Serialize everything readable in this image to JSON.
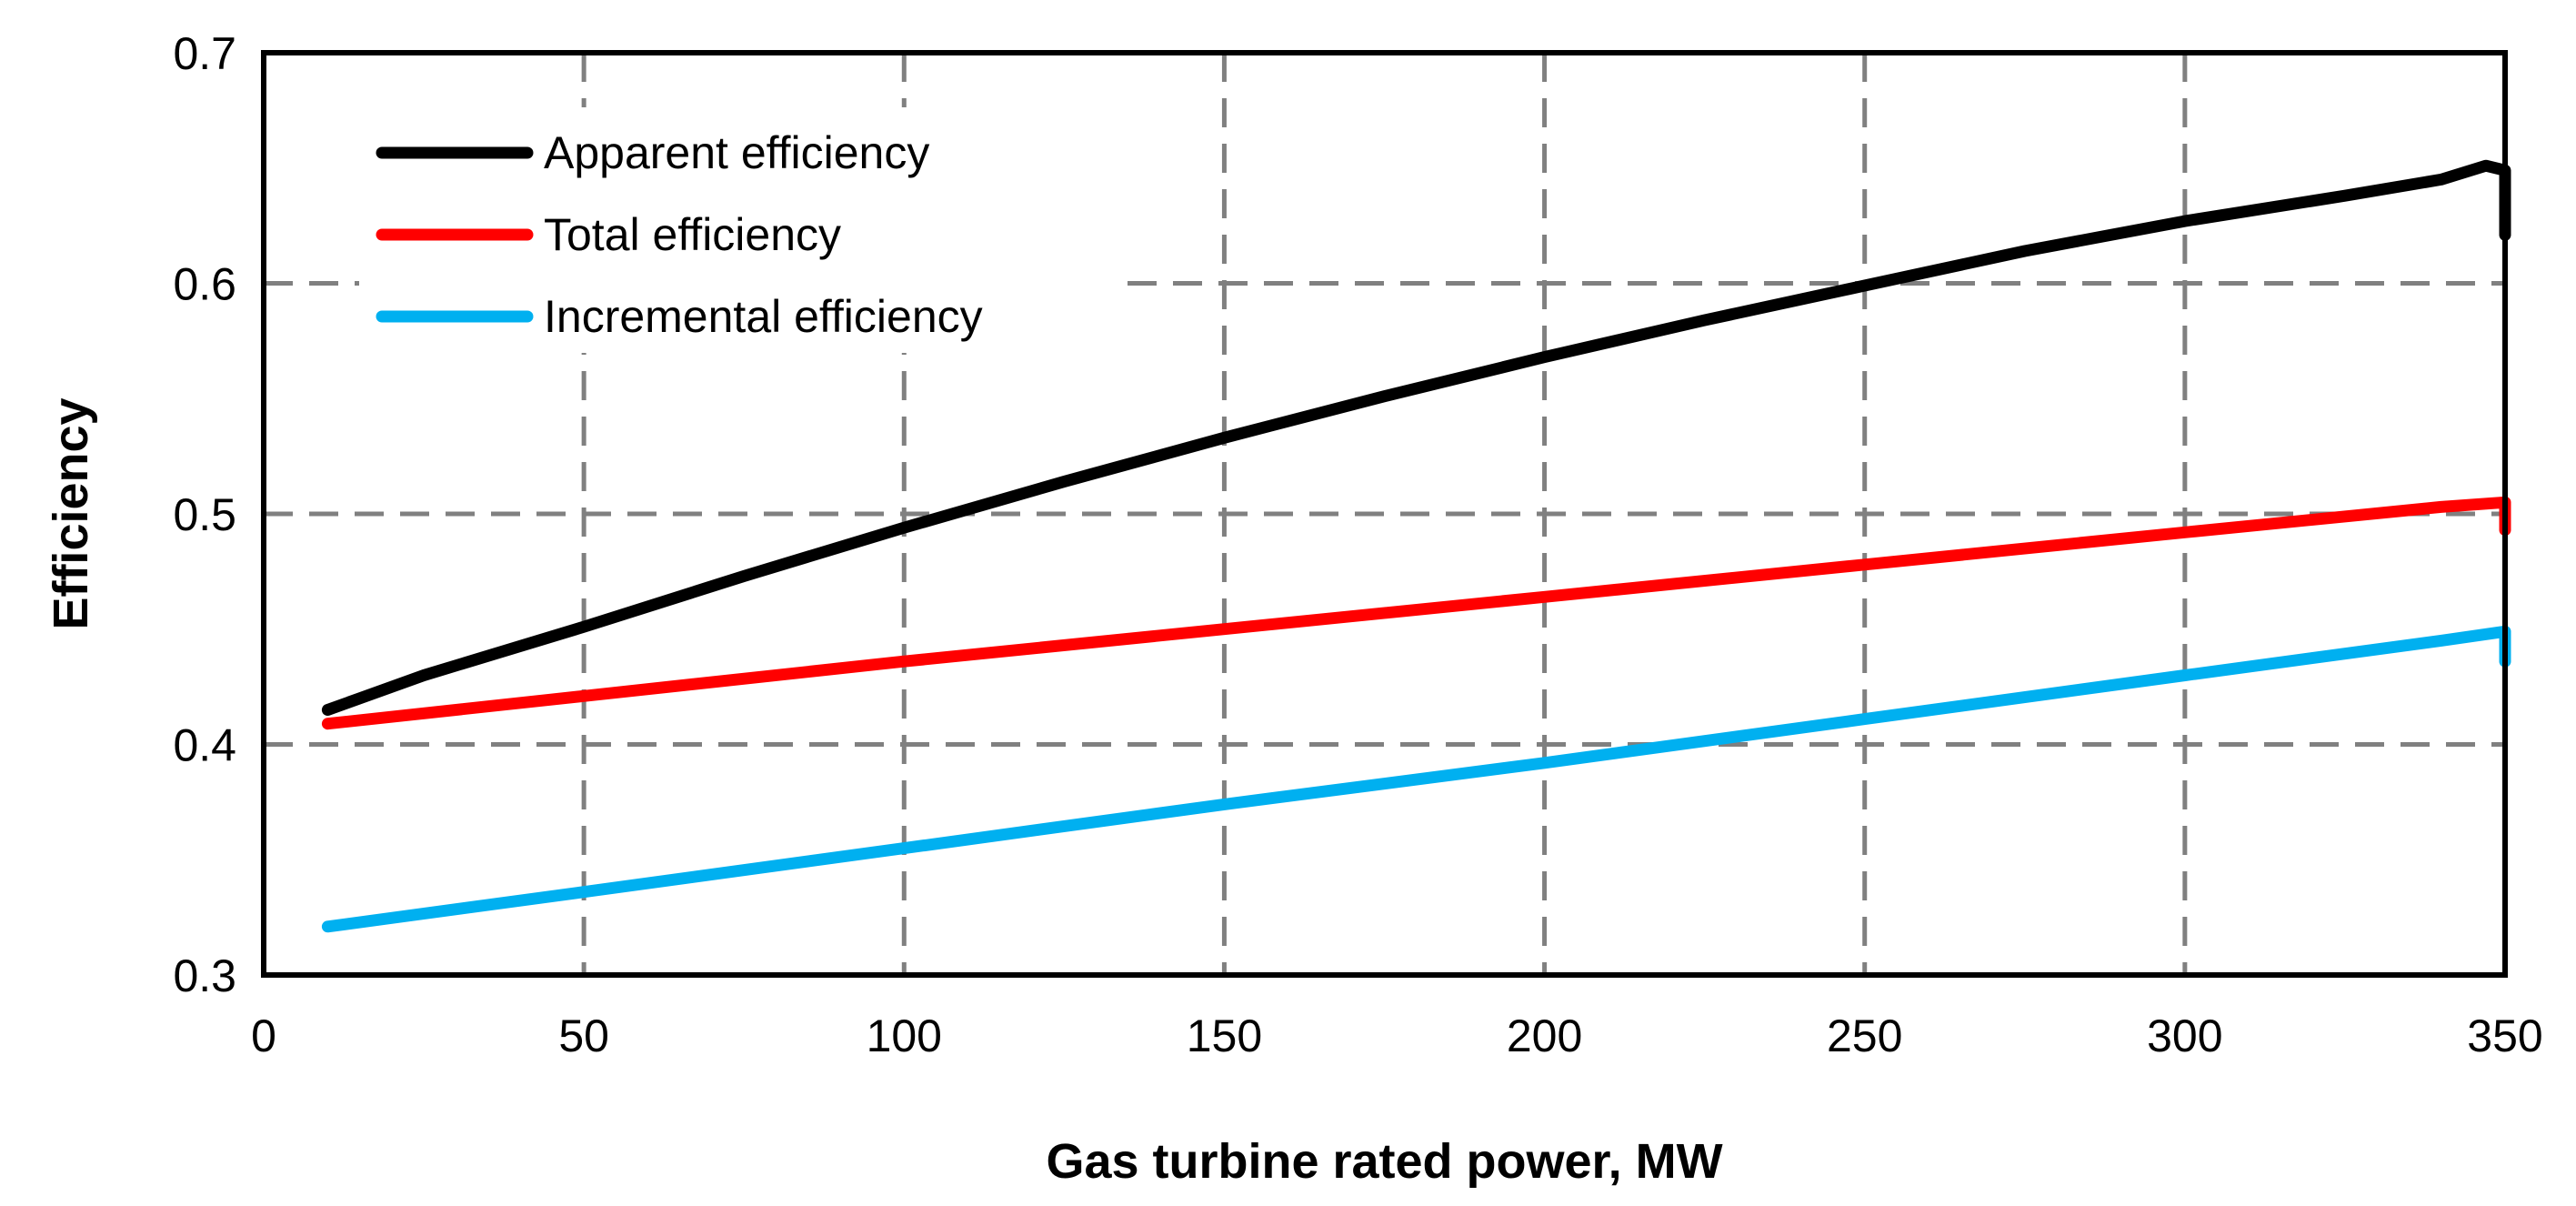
{
  "chart_data": {
    "type": "line",
    "title": "",
    "xlabel": "Gas turbine rated power, MW",
    "ylabel": "Efficiency",
    "xlim": [
      0,
      350
    ],
    "ylim": [
      0.3,
      0.7
    ],
    "xticks": [
      0,
      50,
      100,
      150,
      200,
      250,
      300,
      350
    ],
    "yticks": [
      0.3,
      0.4,
      0.5,
      0.6,
      0.7
    ],
    "xtick_labels": [
      "0",
      "50",
      "100",
      "150",
      "200",
      "250",
      "300",
      "350"
    ],
    "ytick_labels": [
      "0.3",
      "0.4",
      "0.5",
      "0.6",
      "0.7"
    ],
    "grid": true,
    "legend_position": "top-left",
    "series": [
      {
        "name": "Apparent efficiency",
        "color": "#000000",
        "x": [
          10,
          25,
          50,
          75,
          100,
          125,
          150,
          175,
          200,
          225,
          250,
          275,
          300,
          325,
          340,
          347,
          350,
          350
        ],
        "y": [
          0.415,
          0.43,
          0.451,
          0.473,
          0.494,
          0.514,
          0.533,
          0.551,
          0.568,
          0.584,
          0.599,
          0.614,
          0.627,
          0.638,
          0.645,
          0.651,
          0.649,
          0.621
        ]
      },
      {
        "name": "Total efficiency",
        "color": "#ff0000",
        "x": [
          10,
          50,
          100,
          150,
          200,
          250,
          300,
          340,
          350,
          350
        ],
        "y": [
          0.409,
          0.421,
          0.436,
          0.45,
          0.464,
          0.478,
          0.492,
          0.503,
          0.505,
          0.493
        ]
      },
      {
        "name": "Incremental efficiency",
        "color": "#00b0f0",
        "x": [
          10,
          50,
          100,
          150,
          200,
          250,
          300,
          340,
          350,
          350
        ],
        "y": [
          0.321,
          0.336,
          0.355,
          0.374,
          0.392,
          0.411,
          0.43,
          0.445,
          0.449,
          0.436
        ]
      }
    ]
  }
}
